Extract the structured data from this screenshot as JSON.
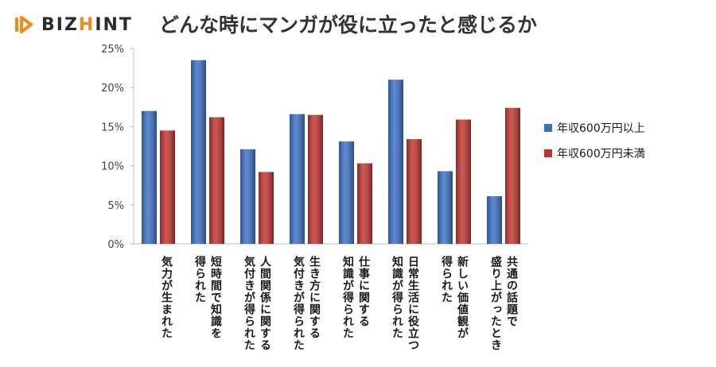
{
  "brand": {
    "prefix": "BIZ",
    "h": "H",
    "i": "I",
    "nt": "NT",
    "accent_color": "#f08a1c"
  },
  "title": "どんな時にマンガが役に立ったと感じるか",
  "chart_data": {
    "type": "bar",
    "categories": [
      [
        "気力が生まれた"
      ],
      [
        "短時間で知識を",
        "得られた"
      ],
      [
        "人間関係に関する",
        "気付きが得られた"
      ],
      [
        "生き方に関する",
        "気付きが得られた"
      ],
      [
        "仕事に関する",
        "知識が得られた"
      ],
      [
        "日常生活に役立つ",
        "知識が得られた"
      ],
      [
        "新しい価値観が",
        "得られた"
      ],
      [
        "共通の話題で",
        "盛り上がったとき"
      ]
    ],
    "series": [
      {
        "name": "年収600万円以上",
        "color": "#3a6fc4",
        "values": [
          17.0,
          23.5,
          12.1,
          16.6,
          13.1,
          21.0,
          9.3,
          6.1
        ]
      },
      {
        "name": "年収600万円未満",
        "color": "#c0332e",
        "values": [
          14.5,
          16.2,
          9.2,
          16.5,
          10.3,
          13.4,
          15.9,
          17.4
        ]
      }
    ],
    "ylim": [
      0,
      25
    ],
    "yticks": [
      "0%",
      "5%",
      "10%",
      "15%",
      "20%",
      "25%"
    ],
    "legend_position": "right",
    "grid": false
  }
}
